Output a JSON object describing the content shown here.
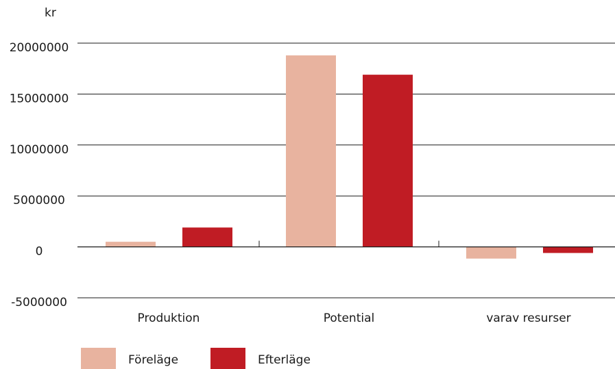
{
  "chart_data": {
    "type": "bar",
    "ylabel": "kr",
    "categories": [
      "Produktion",
      "Potential",
      "varav resurser"
    ],
    "series": [
      {
        "name": "Föreläge",
        "values": [
          500000,
          18800000,
          -1150000
        ],
        "color": "#e8b39f"
      },
      {
        "name": "Efterläge",
        "values": [
          1900000,
          16900000,
          -600000
        ],
        "color": "#c01c24"
      }
    ],
    "ylim": [
      -5000000,
      20000000
    ],
    "yticks": [
      20000000,
      15000000,
      10000000,
      5000000,
      0,
      -5000000
    ],
    "ytick_labels": [
      "20000000",
      "15000000",
      "10000000",
      "5000000",
      "0",
      "-5000000"
    ],
    "grid": true,
    "legend": "bottom-left"
  }
}
